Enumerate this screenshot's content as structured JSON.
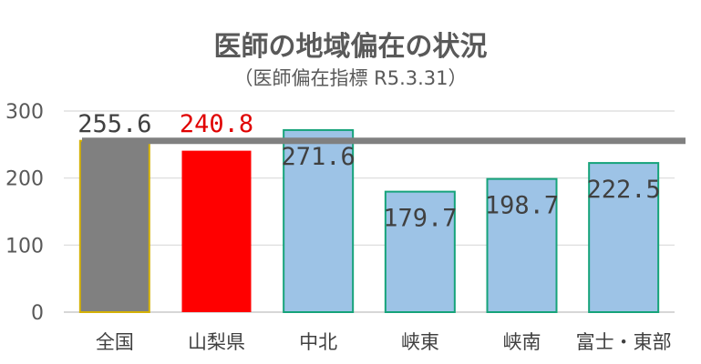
{
  "chart_data": {
    "type": "bar",
    "title": "医師の地域偏在の状況",
    "subtitle": "（医師偏在指標 R5.3.31）",
    "categories": [
      "全国",
      "山梨県",
      "中北",
      "峡東",
      "峡南",
      "富士・東部"
    ],
    "values": [
      255.6,
      240.8,
      271.6,
      179.7,
      198.7,
      222.5
    ],
    "data_labels": [
      "255.6",
      "240.8",
      "271.6",
      "179.7",
      "198.7",
      "222.5"
    ],
    "reference_line": 255.6,
    "ylim": [
      0,
      300
    ],
    "yticks": [
      "0",
      "100",
      "200",
      "300"
    ],
    "xlabel": "",
    "ylabel": "",
    "grid": true,
    "legend": "none",
    "colors": {
      "national": "#808080",
      "national_border": "#d4b106",
      "prefecture": "#ff0000",
      "region": "#9dc3e6",
      "region_border": "#16a37a",
      "reference_line": "#808080",
      "label_default": "#404040",
      "label_highlight": "#e00000"
    }
  }
}
